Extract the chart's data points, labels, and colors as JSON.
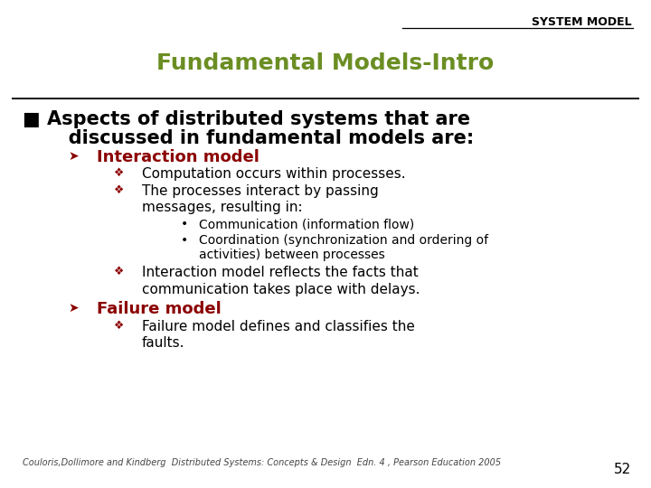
{
  "bg_color": "#ffffff",
  "header_text": "SYSTEM MODEL",
  "header_color": "#000000",
  "title_text": "Fundamental Models-Intro",
  "title_color": "#6b8e23",
  "bullet_main_color": "#000000",
  "bullet_main_text1": "■ Aspects of distributed systems that are",
  "bullet_main_text2": "   discussed in fundamental models are:",
  "bullet_main_size": 15,
  "arrow_color": "#8b0000",
  "diamond_color": "#8b0000",
  "l1_interaction": "Interaction model",
  "l1_failure": "Failure model",
  "l2_1": "Computation occurs within processes.",
  "l2_2a": "The processes interact by passing",
  "l2_2b": "messages, resulting in:",
  "l3_1": "Communication (information flow)",
  "l3_2a": "Coordination (synchronization and ordering of",
  "l3_2b": "activities) between processes",
  "l2_3a": "Interaction model reflects the facts that",
  "l2_3b": "communication takes place with delays.",
  "l2_f1a": "Failure model defines and classifies the",
  "l2_f1b": "faults.",
  "footer_text": "Couloris,Dollimore and Kindberg  Distributed Systems: Concepts & Design  Edn. 4 , Pearson Education 2005",
  "footer_color": "#444444",
  "footer_size": 7,
  "page_num": "52",
  "page_num_size": 11
}
